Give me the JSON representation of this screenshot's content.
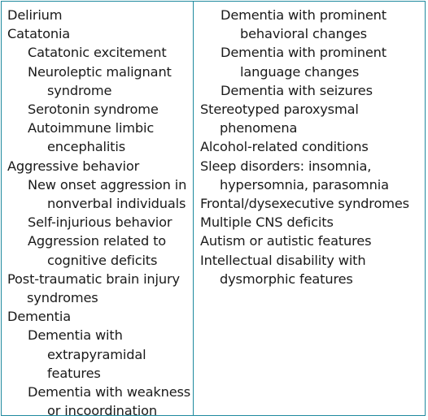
{
  "left_column": [
    {
      "text": "Delirium",
      "level": 0
    },
    {
      "text": "Catatonia",
      "level": 0
    },
    {
      "text": "Catatonic excitement",
      "level": 1
    },
    {
      "text": "Neuroleptic malignant syndrome",
      "level": 1
    },
    {
      "text": "Serotonin syndrome",
      "level": 1
    },
    {
      "text": "Autoimmune limbic encephalitis",
      "level": 1
    },
    {
      "text": "Aggressive behavior",
      "level": 0
    },
    {
      "text": "New onset aggression in nonverbal individuals",
      "level": 1
    },
    {
      "text": "Self-injurious behavior",
      "level": 1
    },
    {
      "text": "Aggression related to cognitive deficits",
      "level": 1
    },
    {
      "text": "Post-traumatic brain injury syndromes",
      "level": 0
    },
    {
      "text": "Dementia",
      "level": 0
    },
    {
      "text": "Dementia with extrapyramidal features",
      "level": 1
    },
    {
      "text": "Dementia with weakness or incoordination",
      "level": 1
    }
  ],
  "right_column": [
    {
      "text": "Dementia with prominent behavioral changes",
      "level": 1
    },
    {
      "text": "Dementia with prominent language changes",
      "level": 1
    },
    {
      "text": "Dementia with seizures",
      "level": 1
    },
    {
      "text": "Stereotyped paroxysmal phenomena",
      "level": 0
    },
    {
      "text": "Alcohol-related conditions",
      "level": 0
    },
    {
      "text": "Sleep disorders: insomnia, hypersomnia, parasomnia",
      "level": 0
    },
    {
      "text": "Frontal/dysexecutive syndromes",
      "level": 0
    },
    {
      "text": "Multiple CNS deficits",
      "level": 0
    },
    {
      "text": "Autism or autistic features",
      "level": 0
    },
    {
      "text": "Intellectual disability with dysmorphic features",
      "level": 0
    }
  ],
  "colors": {
    "border": "#1f8a9e",
    "text": "#1a1a1a"
  }
}
